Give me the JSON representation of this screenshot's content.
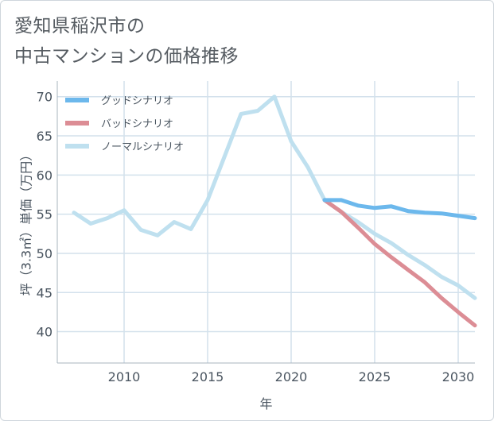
{
  "header": {
    "title_line1": "愛知県稲沢市の",
    "title_line2": "中古マンションの価格推移"
  },
  "chart_data": {
    "type": "line",
    "xlabel": "年",
    "ylabel": "坪（3.3㎡）単価（万円）",
    "xlim": [
      2006,
      2031
    ],
    "ylim": [
      36,
      72
    ],
    "x_ticks": [
      2010,
      2015,
      2020,
      2025,
      2030
    ],
    "y_ticks": [
      40,
      45,
      50,
      55,
      60,
      65,
      70
    ],
    "grid": true,
    "legend_position": "top-left",
    "series": [
      {
        "name": "グッドシナリオ",
        "color": "#6cb8ec",
        "x": [
          2022,
          2023,
          2024,
          2025,
          2026,
          2027,
          2028,
          2029,
          2030,
          2031
        ],
        "values": [
          56.8,
          56.8,
          56.1,
          55.8,
          56.0,
          55.4,
          55.2,
          55.1,
          54.8,
          54.5
        ]
      },
      {
        "name": "バッドシナリオ",
        "color": "#dc8d95",
        "x": [
          2022,
          2023,
          2024,
          2025,
          2026,
          2027,
          2028,
          2029,
          2030,
          2031
        ],
        "values": [
          56.8,
          55.3,
          53.3,
          51.2,
          49.5,
          47.9,
          46.3,
          44.3,
          42.5,
          40.8
        ]
      },
      {
        "name": "ノーマルシナリオ",
        "color": "#bfe0ef",
        "x": [
          2007,
          2008,
          2009,
          2010,
          2011,
          2012,
          2013,
          2014,
          2015,
          2016,
          2017,
          2018,
          2019,
          2020,
          2021,
          2022,
          2023,
          2024,
          2025,
          2026,
          2027,
          2028,
          2029,
          2030,
          2031
        ],
        "values": [
          55.2,
          53.8,
          54.5,
          55.5,
          53.0,
          52.3,
          54.0,
          53.1,
          56.8,
          62.3,
          67.8,
          68.2,
          70.0,
          64.3,
          61.0,
          56.8,
          55.3,
          54.0,
          52.5,
          51.3,
          49.8,
          48.5,
          47.0,
          45.9,
          44.3
        ]
      }
    ]
  }
}
